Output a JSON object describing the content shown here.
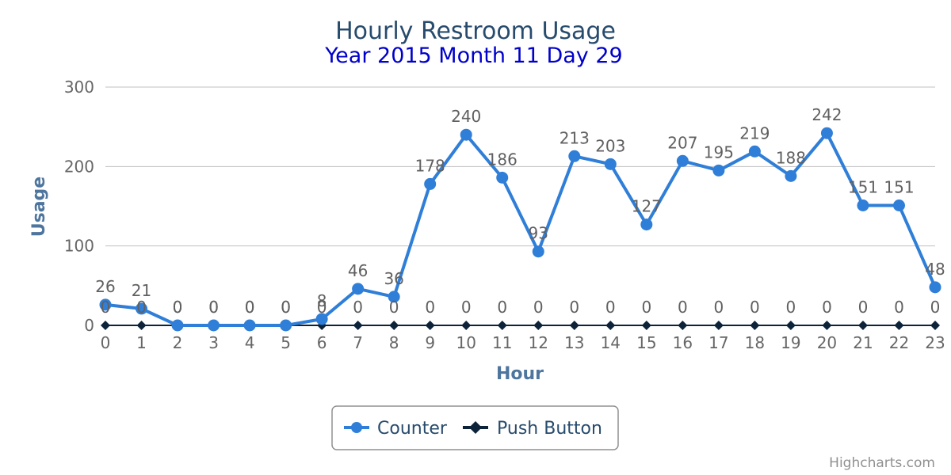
{
  "chart_data": {
    "type": "line",
    "title": "Hourly Restroom Usage",
    "subtitle": "Year 2015 Month 11 Day 29",
    "xlabel": "Hour",
    "ylabel": "Usage",
    "categories": [
      "0",
      "1",
      "2",
      "3",
      "4",
      "5",
      "6",
      "7",
      "8",
      "9",
      "10",
      "11",
      "12",
      "13",
      "14",
      "15",
      "16",
      "17",
      "18",
      "19",
      "20",
      "21",
      "22",
      "23"
    ],
    "ylim": [
      0,
      300
    ],
    "yticks": [
      "0",
      "100",
      "200",
      "300"
    ],
    "grid": true,
    "legend_position": "bottom-center",
    "series": [
      {
        "name": "Counter",
        "color": "#2f7ed8",
        "marker": "circle",
        "values": [
          26,
          21,
          0,
          0,
          0,
          0,
          8,
          46,
          36,
          178,
          240,
          186,
          93,
          213,
          203,
          127,
          207,
          195,
          219,
          188,
          242,
          151,
          151,
          48
        ]
      },
      {
        "name": "Push Button",
        "color": "#0d233a",
        "marker": "diamond",
        "values": [
          0,
          0,
          0,
          0,
          0,
          0,
          0,
          0,
          0,
          0,
          0,
          0,
          0,
          0,
          0,
          0,
          0,
          0,
          0,
          0,
          0,
          0,
          0,
          0
        ]
      }
    ],
    "credits": "Highcharts.com"
  }
}
